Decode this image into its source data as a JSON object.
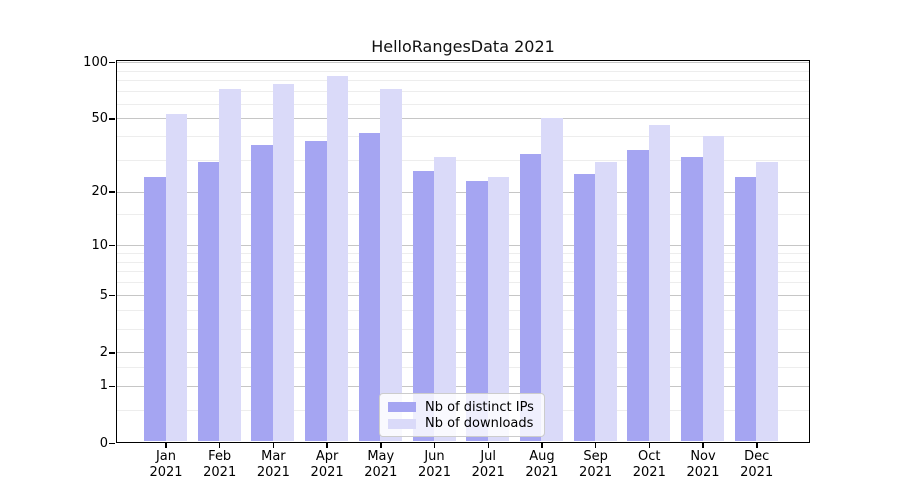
{
  "chart_data": {
    "type": "bar",
    "title": "HelloRangesData 2021",
    "categories": [
      "Jan",
      "Feb",
      "Mar",
      "Apr",
      "May",
      "Jun",
      "Jul",
      "Aug",
      "Sep",
      "Oct",
      "Nov",
      "Dec"
    ],
    "x_axis": {
      "year_label": "2021"
    },
    "series": [
      {
        "name": "Nb of distinct IPs",
        "color": "#a5a5f2",
        "values": [
          24,
          29,
          36,
          38,
          42,
          26,
          23,
          32,
          25,
          34,
          31,
          24
        ]
      },
      {
        "name": "Nb of downloads",
        "color": "#dadaf9",
        "values": [
          53,
          72,
          76,
          84,
          72,
          31,
          24,
          50,
          29,
          46,
          40,
          29
        ]
      }
    ],
    "y_axis": {
      "scale": "log1p",
      "ticks": [
        0,
        1,
        2,
        5,
        10,
        20,
        50,
        100
      ],
      "minor_ticks": [
        0.5,
        1.5,
        3,
        4,
        6,
        7,
        8,
        9,
        15,
        30,
        40,
        60,
        70,
        80,
        90
      ],
      "range": [
        0,
        100
      ]
    },
    "grid": true,
    "legend_position": "lower-center"
  }
}
